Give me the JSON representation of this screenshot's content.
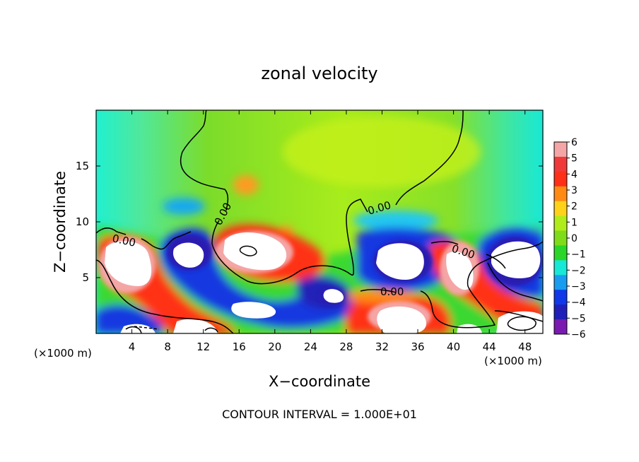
{
  "chart_data": {
    "type": "heatmap",
    "title": "zonal velocity",
    "xlabel": "X−coordinate",
    "ylabel": "Z−coordinate",
    "x_unit_left": "(×1000 m)",
    "x_unit_right": "(×1000 m)",
    "xlim": [
      0,
      50
    ],
    "ylim": [
      0,
      20
    ],
    "x_ticks": [
      4,
      8,
      12,
      16,
      20,
      24,
      28,
      32,
      36,
      40,
      44,
      48
    ],
    "x_tick_labels": [
      "4",
      "8",
      "12",
      "16",
      "20",
      "24",
      "28",
      "32",
      "36",
      "40",
      "44",
      "48"
    ],
    "y_ticks": [
      5,
      10,
      15
    ],
    "y_tick_labels": [
      "5",
      "10",
      "15"
    ],
    "footer": "CONTOUR INTERVAL = 1.000E+01",
    "contour_labels": [
      "0.00",
      "0.00",
      "0.00",
      "0.00",
      "0.00"
    ],
    "colorbar": {
      "levels": [
        6,
        5,
        4,
        3,
        2,
        1,
        0,
        -1,
        -2,
        -3,
        -4,
        -5,
        -6
      ],
      "tick_labels": [
        "6",
        "5",
        "4",
        "3",
        "2",
        "1",
        "0",
        "−1",
        "−2",
        "−3",
        "−4",
        "−5",
        "−6"
      ],
      "colors": [
        "#f4a6a6",
        "#f03a3a",
        "#ff3018",
        "#ff8a14",
        "#ffd21a",
        "#b0ec1a",
        "#7edc1a",
        "#2ad62a",
        "#18e8d6",
        "#189cf0",
        "#1038e8",
        "#2020b8",
        "#7a1ab0"
      ]
    },
    "features": [
      {
        "type": "positive-lobe",
        "x": [
          0.5,
          6
        ],
        "z": [
          4,
          8.5
        ]
      },
      {
        "type": "positive-lobe",
        "x": [
          14,
          23
        ],
        "z": [
          6.5,
          9
        ]
      },
      {
        "type": "positive-lobe",
        "x": [
          38,
          43
        ],
        "z": [
          3.5,
          7.5
        ]
      },
      {
        "type": "positive-lobe",
        "x": [
          29,
          38
        ],
        "z": [
          0,
          3
        ]
      },
      {
        "type": "negative-lobe",
        "x": [
          8,
          13
        ],
        "z": [
          6,
          9
        ]
      },
      {
        "type": "negative-lobe",
        "x": [
          24,
          28
        ],
        "z": [
          2.5,
          5
        ]
      },
      {
        "type": "negative-lobe",
        "x": [
          30,
          37
        ],
        "z": [
          4.5,
          8
        ]
      },
      {
        "type": "negative-lobe",
        "x": [
          44,
          50
        ],
        "z": [
          4.5,
          8.5
        ]
      }
    ]
  }
}
